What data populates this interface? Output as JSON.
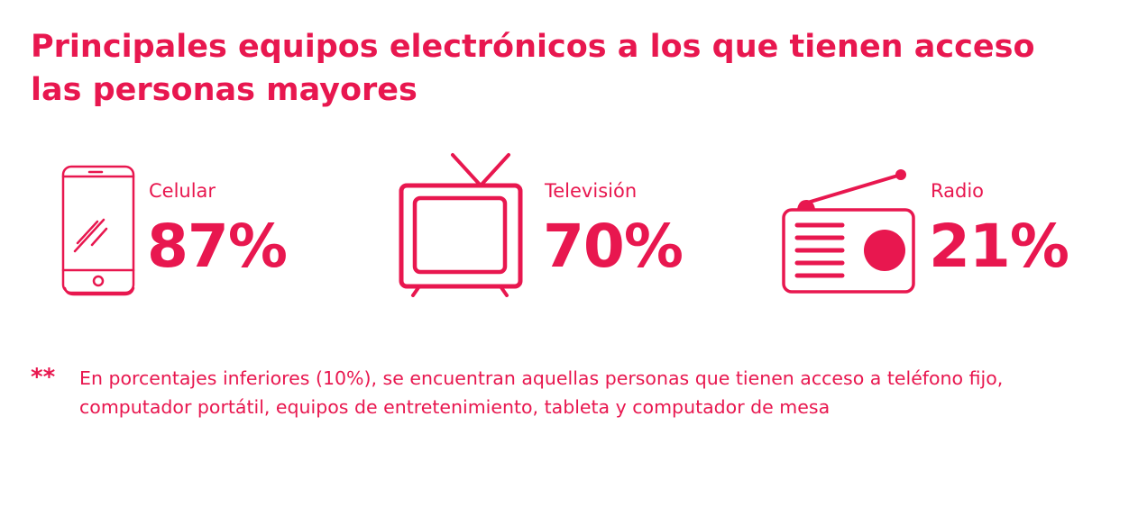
{
  "title": "Principales equipos electrónicos a los que tienen acceso las personas mayores",
  "items": [
    {
      "label": "Celular",
      "value": "87%",
      "icon": "mobile-phone-icon"
    },
    {
      "label": "Televisión",
      "value": "70%",
      "icon": "television-icon"
    },
    {
      "label": "Radio",
      "value": "21%",
      "icon": "radio-icon"
    }
  ],
  "footnote": {
    "marker": "**",
    "text": "En porcentajes inferiores (10%), se encuentran aquellas personas que tienen acceso a teléfono fijo, computador portátil, equipos de entretenimiento, tableta y computador de mesa"
  },
  "colors": {
    "accent": "#E8174F"
  }
}
